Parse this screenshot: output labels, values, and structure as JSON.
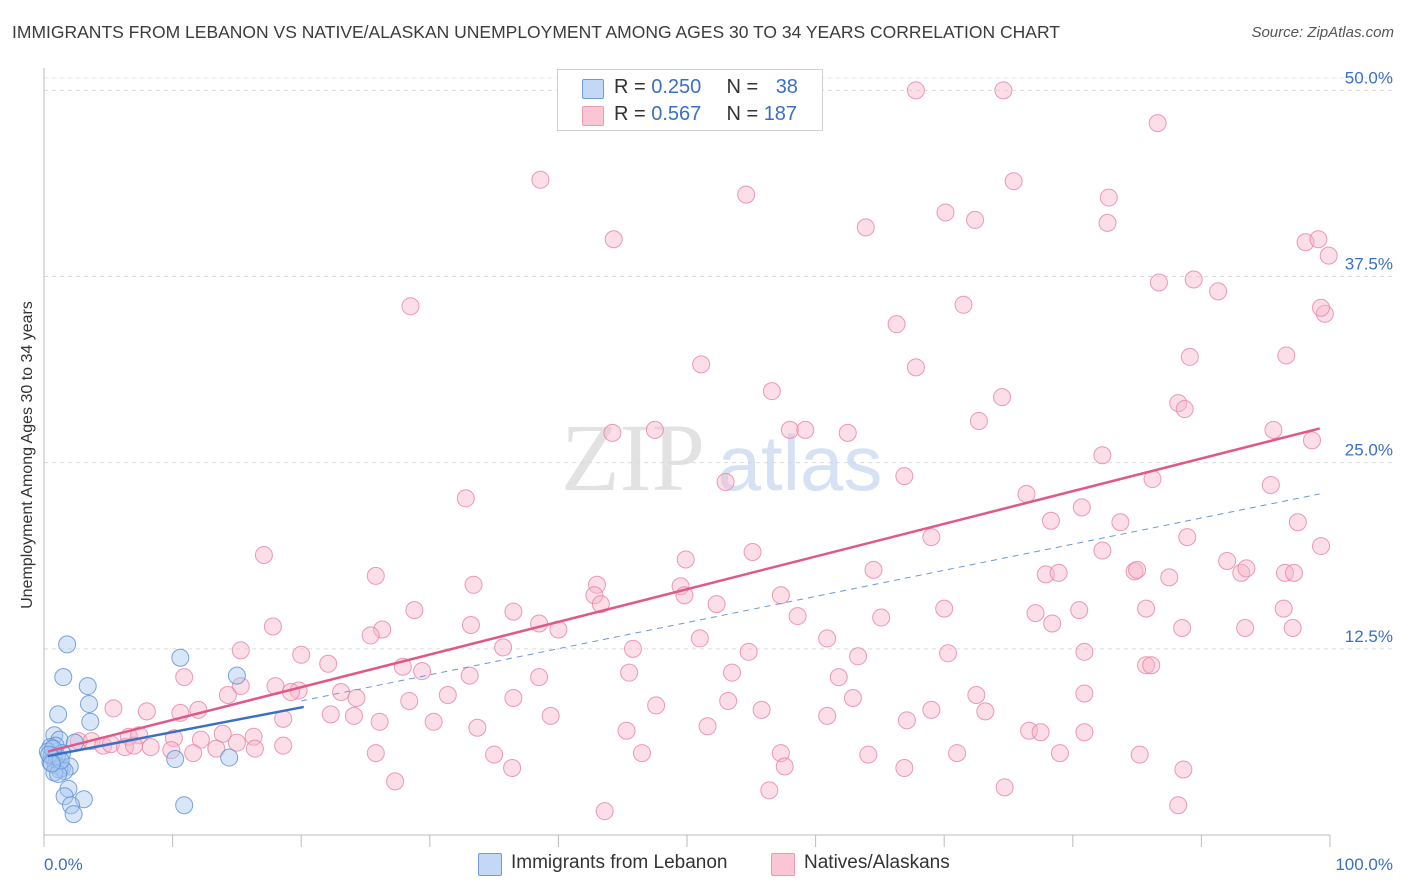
{
  "title": "IMMIGRANTS FROM LEBANON VS NATIVE/ALASKAN UNEMPLOYMENT AMONG AGES 30 TO 34 YEARS CORRELATION CHART",
  "source": "Source: ZipAtlas.com",
  "watermark": {
    "zip": "ZIP",
    "atlas": "atlas"
  },
  "legend": {
    "rows": [
      {
        "r_label": "R = ",
        "r_value": "0.250",
        "n_label": "N = ",
        "n_value": "38",
        "color": "#a9c8f0"
      },
      {
        "r_label": "R = ",
        "r_value": "0.567",
        "n_label": "N = ",
        "n_value": "187",
        "color": "#f7b6cb"
      }
    ]
  },
  "bottom_legend": [
    {
      "label": "Immigrants from Lebanon",
      "color": "#a9c8f0"
    },
    {
      "label": "Natives/Alaskans",
      "color": "#f7b6cb"
    }
  ],
  "chart_data": {
    "type": "scatter",
    "title": "IMMIGRANTS FROM LEBANON VS NATIVE/ALASKAN UNEMPLOYMENT AMONG AGES 30 TO 34 YEARS CORRELATION CHART",
    "xlabel": "",
    "ylabel": "Unemployment Among Ages 30 to 34 years",
    "xlim": [
      0,
      100
    ],
    "ylim": [
      0,
      51.5
    ],
    "x_tick_labels": [
      "0.0%",
      "100.0%"
    ],
    "y_ticks": [
      12.5,
      25.0,
      37.5,
      50.0
    ],
    "y_tick_labels": [
      "12.5%",
      "25.0%",
      "37.5%",
      "50.0%"
    ],
    "grid": true,
    "series": [
      {
        "name": "Immigrants from Lebanon",
        "color": "#a9c8f0",
        "stroke": "#5b8fd6",
        "trend": {
          "x0": 0.3,
          "y0": 5.3,
          "x1": 20.2,
          "y1": 8.6,
          "color": "#3a6fc4"
        },
        "points": [
          [
            1.8,
            12.8
          ],
          [
            1.5,
            10.6
          ],
          [
            3.4,
            10.0
          ],
          [
            3.5,
            8.8
          ],
          [
            1.1,
            8.1
          ],
          [
            3.6,
            7.6
          ],
          [
            0.8,
            6.7
          ],
          [
            1.2,
            6.4
          ],
          [
            0.9,
            6.0
          ],
          [
            0.5,
            5.9
          ],
          [
            0.3,
            5.6
          ],
          [
            1.4,
            5.5
          ],
          [
            0.6,
            5.3
          ],
          [
            0.8,
            5.1
          ],
          [
            0.5,
            4.9
          ],
          [
            0.9,
            4.7
          ],
          [
            1.4,
            4.5
          ],
          [
            2.0,
            4.6
          ],
          [
            1.2,
            4.4
          ],
          [
            1.6,
            4.3
          ],
          [
            0.8,
            4.2
          ],
          [
            1.1,
            4.1
          ],
          [
            1.9,
            3.1
          ],
          [
            1.6,
            2.6
          ],
          [
            3.1,
            2.4
          ],
          [
            2.1,
            2.0
          ],
          [
            2.3,
            1.4
          ],
          [
            10.6,
            11.9
          ],
          [
            15.0,
            10.7
          ],
          [
            10.2,
            5.1
          ],
          [
            14.4,
            5.2
          ],
          [
            10.9,
            2.0
          ],
          [
            1.0,
            5.3
          ],
          [
            0.7,
            5.8
          ],
          [
            0.4,
            5.4
          ],
          [
            1.3,
            5.0
          ],
          [
            2.4,
            6.2
          ],
          [
            0.6,
            4.8
          ]
        ]
      },
      {
        "name": "Natives/Alaskans",
        "color": "#f7b6cb",
        "stroke": "#e8839f",
        "trend": {
          "x0": 0.3,
          "y0": 5.6,
          "x1": 99.2,
          "y1": 27.3,
          "color": "#e0588a"
        },
        "trend_extension": {
          "x0": 20.0,
          "y0": 9.0,
          "x1": 99.2,
          "y1": 22.9,
          "color": "#6c97d8"
        },
        "points": [
          [
            67.8,
            50.0
          ],
          [
            74.6,
            50.0
          ],
          [
            86.6,
            47.8
          ],
          [
            38.6,
            44.0
          ],
          [
            54.6,
            43.0
          ],
          [
            75.4,
            43.9
          ],
          [
            82.8,
            42.8
          ],
          [
            70.1,
            41.8
          ],
          [
            72.4,
            41.3
          ],
          [
            82.7,
            41.1
          ],
          [
            63.9,
            40.8
          ],
          [
            44.3,
            40.0
          ],
          [
            98.1,
            39.8
          ],
          [
            99.1,
            40.0
          ],
          [
            99.9,
            38.9
          ],
          [
            86.7,
            37.1
          ],
          [
            89.4,
            37.3
          ],
          [
            91.3,
            36.5
          ],
          [
            28.5,
            35.5
          ],
          [
            71.5,
            35.6
          ],
          [
            99.6,
            35.0
          ],
          [
            99.3,
            35.4
          ],
          [
            66.3,
            34.3
          ],
          [
            96.6,
            32.2
          ],
          [
            89.1,
            32.1
          ],
          [
            51.1,
            31.6
          ],
          [
            67.8,
            31.4
          ],
          [
            56.6,
            29.8
          ],
          [
            74.5,
            29.4
          ],
          [
            88.2,
            29.0
          ],
          [
            88.7,
            28.6
          ],
          [
            72.7,
            27.8
          ],
          [
            95.6,
            27.2
          ],
          [
            47.5,
            27.2
          ],
          [
            58.0,
            27.2
          ],
          [
            59.2,
            27.2
          ],
          [
            62.5,
            27.0
          ],
          [
            44.2,
            27.0
          ],
          [
            98.6,
            26.5
          ],
          [
            82.3,
            25.5
          ],
          [
            66.9,
            24.1
          ],
          [
            53.0,
            23.7
          ],
          [
            86.2,
            23.9
          ],
          [
            95.4,
            23.5
          ],
          [
            32.8,
            22.6
          ],
          [
            76.4,
            22.9
          ],
          [
            80.7,
            22.0
          ],
          [
            97.5,
            21.0
          ],
          [
            78.3,
            21.1
          ],
          [
            83.7,
            21.0
          ],
          [
            69.0,
            20.0
          ],
          [
            88.9,
            20.0
          ],
          [
            55.1,
            19.0
          ],
          [
            82.3,
            19.1
          ],
          [
            99.3,
            19.4
          ],
          [
            17.1,
            18.8
          ],
          [
            49.9,
            18.5
          ],
          [
            92.0,
            18.4
          ],
          [
            96.5,
            17.6
          ],
          [
            77.9,
            17.5
          ],
          [
            84.8,
            17.7
          ],
          [
            64.5,
            17.8
          ],
          [
            78.9,
            17.6
          ],
          [
            85.0,
            17.8
          ],
          [
            93.1,
            17.6
          ],
          [
            97.2,
            17.6
          ],
          [
            93.5,
            17.9
          ],
          [
            25.8,
            17.4
          ],
          [
            87.5,
            17.3
          ],
          [
            33.4,
            16.8
          ],
          [
            43.0,
            16.8
          ],
          [
            49.5,
            16.7
          ],
          [
            42.8,
            16.1
          ],
          [
            49.8,
            16.1
          ],
          [
            57.3,
            16.1
          ],
          [
            43.3,
            15.5
          ],
          [
            52.3,
            15.5
          ],
          [
            70.0,
            15.2
          ],
          [
            80.5,
            15.1
          ],
          [
            85.7,
            15.2
          ],
          [
            96.4,
            15.2
          ],
          [
            28.8,
            15.1
          ],
          [
            36.5,
            15.0
          ],
          [
            58.6,
            14.7
          ],
          [
            77.1,
            14.9
          ],
          [
            65.1,
            14.6
          ],
          [
            78.4,
            14.2
          ],
          [
            88.5,
            13.9
          ],
          [
            93.4,
            13.9
          ],
          [
            97.1,
            13.9
          ],
          [
            17.8,
            14.0
          ],
          [
            26.3,
            13.8
          ],
          [
            33.2,
            14.1
          ],
          [
            38.5,
            14.2
          ],
          [
            40.0,
            13.8
          ],
          [
            51.0,
            13.2
          ],
          [
            60.9,
            13.2
          ],
          [
            25.4,
            13.4
          ],
          [
            35.7,
            12.6
          ],
          [
            45.8,
            12.5
          ],
          [
            54.8,
            12.3
          ],
          [
            63.3,
            12.0
          ],
          [
            70.3,
            12.2
          ],
          [
            80.9,
            12.3
          ],
          [
            15.3,
            12.4
          ],
          [
            20.0,
            12.1
          ],
          [
            22.1,
            11.5
          ],
          [
            27.9,
            11.3
          ],
          [
            29.4,
            11.0
          ],
          [
            33.1,
            10.7
          ],
          [
            38.5,
            10.6
          ],
          [
            45.5,
            10.9
          ],
          [
            53.5,
            10.9
          ],
          [
            61.8,
            10.6
          ],
          [
            85.7,
            11.4
          ],
          [
            86.1,
            11.4
          ],
          [
            10.9,
            10.6
          ],
          [
            15.3,
            10.0
          ],
          [
            18.0,
            10.0
          ],
          [
            19.8,
            9.7
          ],
          [
            23.1,
            9.6
          ],
          [
            31.4,
            9.4
          ],
          [
            36.5,
            9.2
          ],
          [
            53.2,
            9.0
          ],
          [
            62.9,
            9.2
          ],
          [
            72.5,
            9.4
          ],
          [
            80.9,
            9.5
          ],
          [
            14.3,
            9.4
          ],
          [
            19.2,
            9.6
          ],
          [
            24.3,
            9.2
          ],
          [
            28.4,
            9.0
          ],
          [
            47.6,
            8.7
          ],
          [
            55.8,
            8.4
          ],
          [
            67.1,
            7.7
          ],
          [
            69.0,
            8.4
          ],
          [
            5.4,
            8.5
          ],
          [
            8.0,
            8.3
          ],
          [
            10.6,
            8.2
          ],
          [
            12.0,
            8.4
          ],
          [
            22.3,
            8.1
          ],
          [
            24.1,
            8.0
          ],
          [
            39.4,
            8.0
          ],
          [
            60.9,
            8.0
          ],
          [
            73.2,
            8.3
          ],
          [
            18.6,
            7.8
          ],
          [
            26.1,
            7.6
          ],
          [
            30.3,
            7.6
          ],
          [
            33.7,
            7.2
          ],
          [
            45.3,
            7.0
          ],
          [
            51.6,
            7.3
          ],
          [
            76.6,
            7.0
          ],
          [
            77.5,
            6.9
          ],
          [
            80.9,
            6.9
          ],
          [
            13.9,
            6.8
          ],
          [
            16.3,
            6.6
          ],
          [
            6.6,
            6.6
          ],
          [
            7.4,
            6.7
          ],
          [
            10.1,
            6.5
          ],
          [
            12.2,
            6.4
          ],
          [
            15.0,
            6.2
          ],
          [
            18.6,
            6.0
          ],
          [
            2.7,
            6.3
          ],
          [
            3.7,
            6.3
          ],
          [
            4.6,
            6.0
          ],
          [
            5.2,
            6.1
          ],
          [
            6.3,
            5.9
          ],
          [
            7.0,
            6.0
          ],
          [
            8.3,
            5.9
          ],
          [
            9.9,
            5.7
          ],
          [
            11.6,
            5.5
          ],
          [
            13.4,
            5.8
          ],
          [
            16.4,
            5.8
          ],
          [
            25.8,
            5.5
          ],
          [
            35.0,
            5.4
          ],
          [
            46.5,
            5.5
          ],
          [
            57.3,
            5.5
          ],
          [
            64.1,
            5.4
          ],
          [
            71.0,
            5.5
          ],
          [
            79.0,
            5.5
          ],
          [
            85.2,
            5.4
          ],
          [
            36.4,
            4.5
          ],
          [
            57.6,
            4.6
          ],
          [
            66.9,
            4.5
          ],
          [
            88.6,
            4.4
          ],
          [
            56.4,
            3.0
          ],
          [
            74.7,
            3.2
          ],
          [
            88.2,
            2.0
          ],
          [
            43.6,
            1.6
          ],
          [
            27.3,
            3.6
          ]
        ]
      }
    ]
  }
}
